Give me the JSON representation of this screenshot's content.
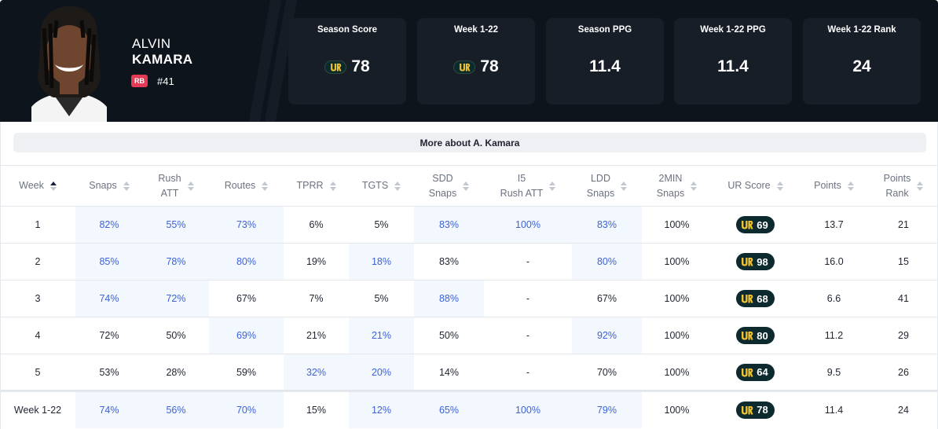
{
  "player": {
    "first_name": "ALVIN",
    "last_name": "KAMARA",
    "position": "RB",
    "jersey": "#41"
  },
  "colors": {
    "header_bg": "#0e141c",
    "card_bg": "#171e28",
    "position_badge": "#e33a55",
    "highlight_text": "#3d63d6",
    "highlight_bg": "#f3f7fe",
    "ur_pill_bg": "#0d2a2f",
    "ur_logo_yellow": "#f2c230"
  },
  "icons": {
    "team_logo": "fleur-de-lis-icon",
    "ur_logo": "ur-logo-icon",
    "sort": "sort-arrows-icon"
  },
  "stats": [
    {
      "label": "Season Score",
      "value": "78",
      "has_logo": true
    },
    {
      "label": "Week 1-22",
      "value": "78",
      "has_logo": true
    },
    {
      "label": "Season PPG",
      "value": "11.4",
      "has_logo": false
    },
    {
      "label": "Week 1-22 PPG",
      "value": "11.4",
      "has_logo": false
    },
    {
      "label": "Week 1-22 Rank",
      "value": "24",
      "has_logo": false
    }
  ],
  "more_button": "More about A. Kamara",
  "table": {
    "columns": [
      {
        "line1": "Week",
        "line2": ""
      },
      {
        "line1": "Snaps",
        "line2": ""
      },
      {
        "line1": "Rush",
        "line2": "ATT"
      },
      {
        "line1": "Routes",
        "line2": ""
      },
      {
        "line1": "TPRR",
        "line2": ""
      },
      {
        "line1": "TGTS",
        "line2": ""
      },
      {
        "line1": "SDD",
        "line2": "Snaps"
      },
      {
        "line1": "I5",
        "line2": "Rush ATT"
      },
      {
        "line1": "LDD",
        "line2": "Snaps"
      },
      {
        "line1": "2MIN",
        "line2": "Snaps"
      },
      {
        "line1": "UR Score",
        "line2": ""
      },
      {
        "line1": "Points",
        "line2": ""
      },
      {
        "line1": "Points",
        "line2": "Rank"
      }
    ],
    "rows": [
      {
        "cells": [
          "1",
          "82%",
          "55%",
          "73%",
          "6%",
          "5%",
          "83%",
          "100%",
          "83%",
          "100%",
          "69",
          "13.7",
          "21"
        ]
      },
      {
        "cells": [
          "2",
          "85%",
          "78%",
          "80%",
          "19%",
          "18%",
          "83%",
          "-",
          "80%",
          "100%",
          "98",
          "16.0",
          "15"
        ]
      },
      {
        "cells": [
          "3",
          "74%",
          "72%",
          "67%",
          "7%",
          "5%",
          "88%",
          "-",
          "67%",
          "100%",
          "68",
          "6.6",
          "41"
        ]
      },
      {
        "cells": [
          "4",
          "72%",
          "50%",
          "69%",
          "21%",
          "21%",
          "50%",
          "-",
          "92%",
          "100%",
          "80",
          "11.2",
          "29"
        ]
      },
      {
        "cells": [
          "5",
          "53%",
          "28%",
          "59%",
          "32%",
          "20%",
          "14%",
          "-",
          "70%",
          "100%",
          "64",
          "9.5",
          "26"
        ]
      }
    ],
    "total": {
      "cells": [
        "Week 1-22",
        "74%",
        "56%",
        "70%",
        "15%",
        "12%",
        "65%",
        "100%",
        "79%",
        "100%",
        "78",
        "11.4",
        "24"
      ]
    }
  }
}
